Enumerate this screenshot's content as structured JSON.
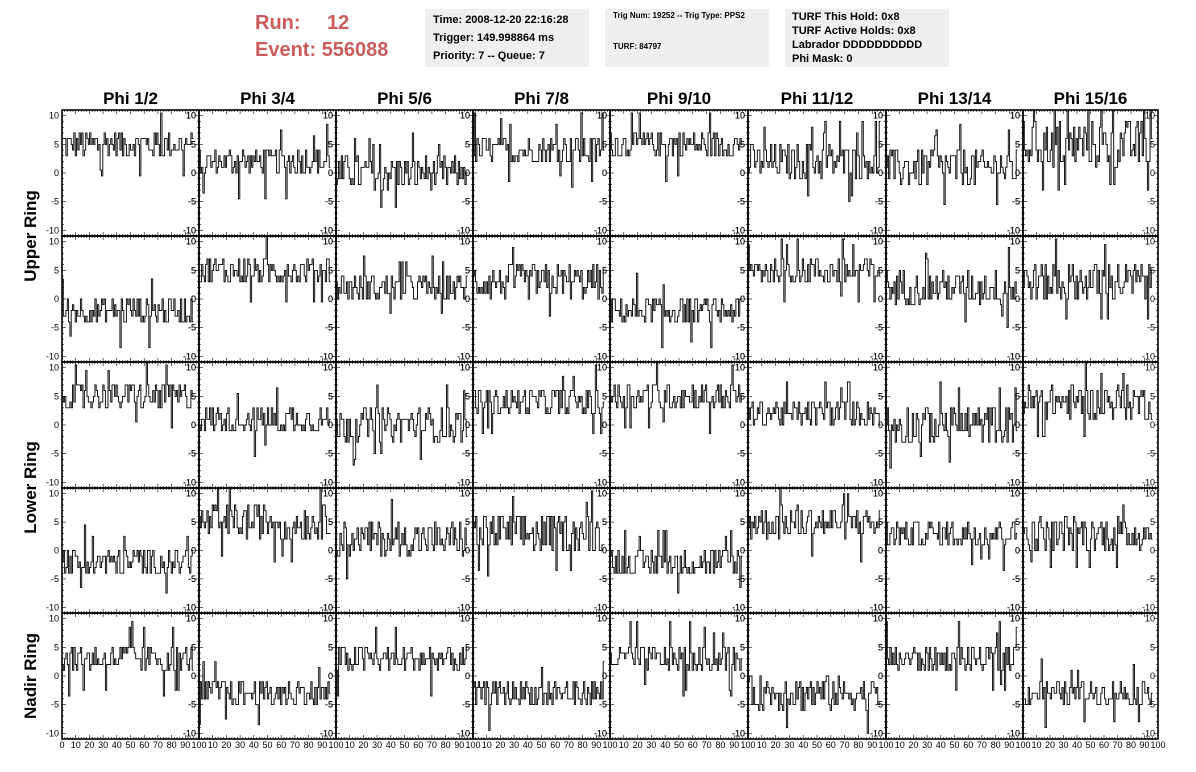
{
  "header": {
    "run_label": "Run:",
    "run_value": "12",
    "event_label": "Event:",
    "event_value": "556088"
  },
  "info_box_1": {
    "time": "Time: 2008-12-20 22:16:28",
    "trigger": "Trigger: 149.998864 ms",
    "priority": "Priority: 7 -- Queue: 7"
  },
  "info_box_2": {
    "trig": "Trig Num: 19252 -- Trig Type: PPS2",
    "turf": "TURF: 84797"
  },
  "info_box_3": {
    "this_hold": "TURF This Hold: 0x8",
    "active_holds": "TURF Active Holds: 0x8",
    "labrador": "Labrador DDDDDDDDDD",
    "phi_mask": "Phi Mask: 0"
  },
  "colors": {
    "header_text": "#cc5b5b",
    "info_bg": "#efefef",
    "trace": "#000000"
  },
  "chart_data": {
    "type": "line",
    "layout": "grid 5 rows x 8 columns of waveform panels",
    "columns": [
      "Phi 1/2",
      "Phi 3/4",
      "Phi 5/6",
      "Phi 7/8",
      "Phi 9/10",
      "Phi 11/12",
      "Phi 13/14",
      "Phi 15/16"
    ],
    "ring_labels": [
      {
        "label": "Upper Ring",
        "rows": [
          0,
          1
        ]
      },
      {
        "label": "Lower Ring",
        "rows": [
          2,
          3
        ]
      },
      {
        "label": "Nadir Ring",
        "rows": [
          4
        ]
      }
    ],
    "xlim": [
      0,
      100
    ],
    "x_ticks": [
      0,
      10,
      20,
      30,
      40,
      50,
      60,
      70,
      80,
      90,
      100
    ],
    "ylim": [
      -11,
      11
    ],
    "y_ticks": [
      -10,
      -5,
      0,
      5,
      10
    ],
    "samples_per_trace": 100,
    "trace_x_extent": [
      0,
      96
    ],
    "grid": false,
    "panels_approx_mean_level": [
      [
        5,
        2,
        0,
        4,
        5,
        2,
        1,
        5
      ],
      [
        -2,
        5,
        2,
        3,
        -2,
        5,
        2,
        3
      ],
      [
        5,
        1,
        0,
        4,
        5,
        2,
        0,
        4
      ],
      [
        -2,
        5,
        2,
        3,
        -2,
        5,
        3,
        3
      ],
      [
        3,
        -3,
        3,
        -3,
        3,
        -3,
        3,
        -3
      ]
    ],
    "panels_approx_amplitude": [
      [
        2.5,
        2.5,
        3,
        2.5,
        2.5,
        3,
        3.5,
        4
      ],
      [
        2.5,
        2.5,
        2.5,
        3,
        2.5,
        2.5,
        3,
        3.5
      ],
      [
        2.5,
        2.5,
        3,
        2.5,
        2.5,
        2.5,
        3.5,
        3
      ],
      [
        2.5,
        3,
        3,
        3.5,
        2.5,
        3,
        2.5,
        3
      ],
      [
        2.5,
        2.5,
        2.5,
        2.5,
        2.5,
        3,
        2.5,
        2
      ]
    ]
  }
}
